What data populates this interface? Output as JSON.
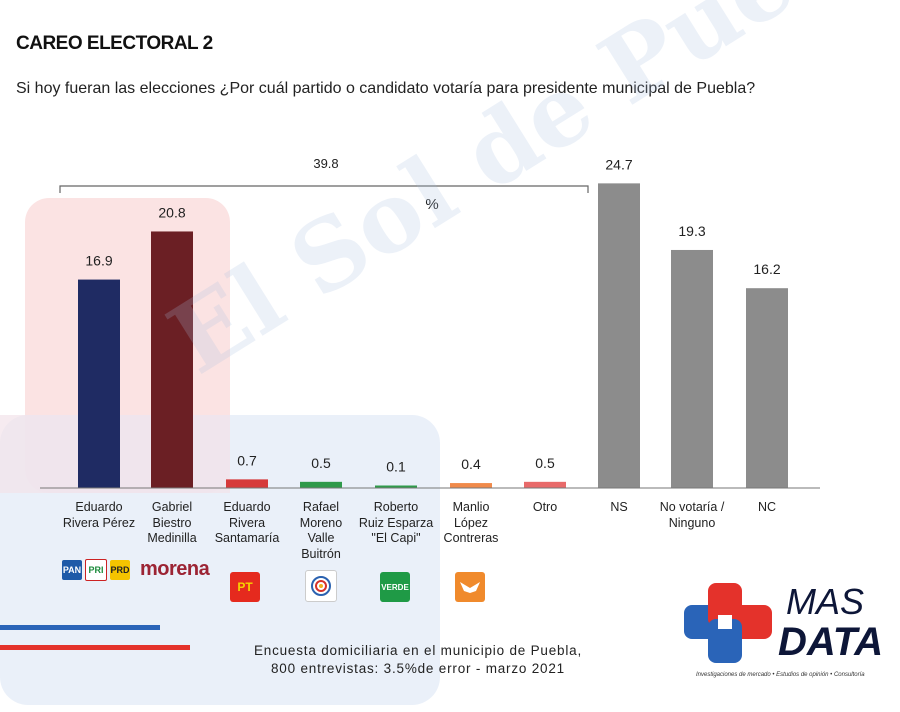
{
  "header": {
    "title": "CAREO ELECTORAL 2",
    "question": "Si hoy fueran las elecciones ¿Por cuál partido o candidato votaría para presidente municipal de Puebla?"
  },
  "watermark": "El Sol de Puebla",
  "chart_data": {
    "type": "bar",
    "title": "CAREO ELECTORAL 2",
    "unit_label": "%",
    "ylim": [
      0,
      30
    ],
    "grid": false,
    "bracket": {
      "label": "39.8",
      "span": [
        "Eduardo Rivera Pérez",
        "Otro"
      ]
    },
    "categories": [
      "Eduardo Rivera Pérez",
      "Gabriel Biestro Medinilla",
      "Eduardo Rivera Santamaría",
      "Rafael Moreno Valle Buitrón",
      "Roberto Ruiz Esparza \"El Capi\"",
      "Manlio López Contreras",
      "Otro",
      "NS",
      "No votaría / Ninguno",
      "NC"
    ],
    "label_lines": [
      [
        "Eduardo",
        "Rivera Pérez"
      ],
      [
        "Gabriel",
        "Biestro",
        "Medinilla"
      ],
      [
        "Eduardo",
        "Rivera",
        "Santamaría"
      ],
      [
        "Rafael",
        "Moreno",
        "Valle",
        "Buitrón"
      ],
      [
        "Roberto",
        "Ruiz Esparza",
        "\"El Capi\""
      ],
      [
        "Manlio",
        "López",
        "Contreras"
      ],
      [
        "Otro"
      ],
      [
        "NS"
      ],
      [
        "No votaría /",
        "Ninguno"
      ],
      [
        "NC"
      ]
    ],
    "values": [
      16.9,
      20.8,
      0.7,
      0.5,
      0.1,
      0.4,
      0.5,
      24.7,
      19.3,
      16.2
    ],
    "value_labels": [
      "16.9",
      "20.8",
      "0.7",
      "0.5",
      "0.1",
      "0.4",
      "0.5",
      "24.7",
      "19.3",
      "16.2"
    ],
    "colors": [
      "#1f2b63",
      "#6b1f24",
      "#d63a3a",
      "#2f9a4a",
      "#2f9a4a",
      "#f08a4b",
      "#e86a6a",
      "#8c8c8c",
      "#8c8c8c",
      "#8c8c8c"
    ]
  },
  "party_logos": {
    "pan": "PAN",
    "pri": "PRI",
    "prd": "PRD",
    "morena": "morena",
    "pt": "PT",
    "verde": "VERDE"
  },
  "footer": {
    "line1": "Encuesta domiciliaria en el municipio de Puebla,",
    "line2": "800 entrevistas: 3.5%de error - marzo 2021"
  },
  "brand": {
    "name_top": "MAS",
    "name_bottom": "DATA",
    "tagline": "Investigaciones de mercado • Estudios de opinión • Consultoría"
  },
  "colors": {
    "highlight_red": "#fbe3e3",
    "highlight_blue": "#e6edf8",
    "brand_red": "#e4322b",
    "brand_blue": "#2a64b8"
  }
}
